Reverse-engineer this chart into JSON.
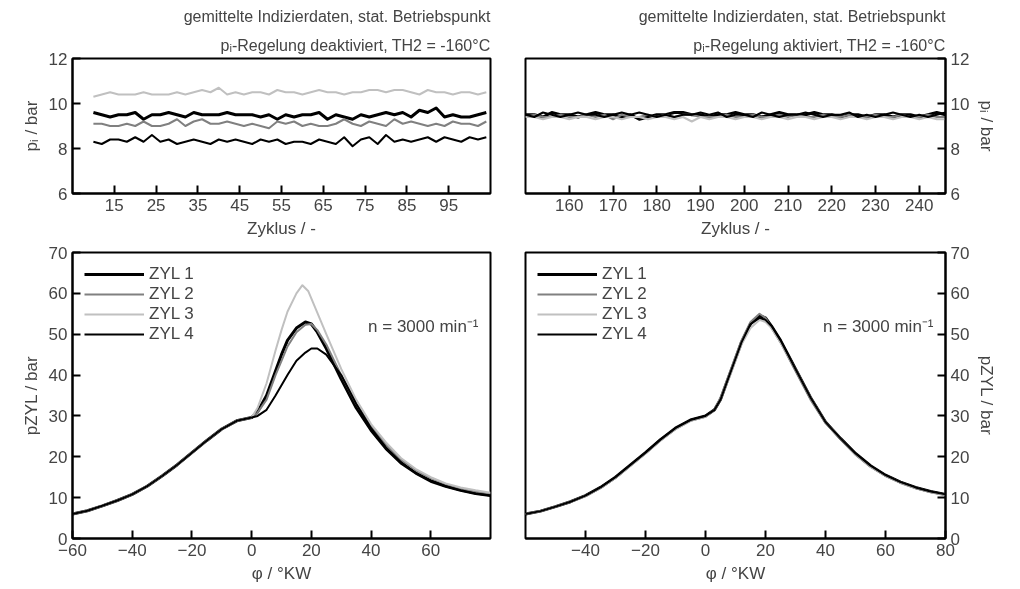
{
  "chart_data": [
    {
      "type": "line",
      "title": "gemittelte Indizierdaten, stat. Betriebspunkt",
      "subtitle": "pᵢ-Regelung deaktiviert, TH2 = -160°C",
      "xlabel": "Zyklus / -",
      "ylabel": "pᵢ / bar",
      "xlim": [
        5,
        105
      ],
      "xticks": [
        15,
        25,
        35,
        45,
        55,
        65,
        75,
        85,
        95
      ],
      "ylim": [
        6,
        12
      ],
      "yticks": [
        6,
        8,
        10,
        12
      ],
      "grid": false,
      "legend": false,
      "x": [
        10,
        12,
        14,
        16,
        18,
        20,
        22,
        24,
        26,
        28,
        30,
        32,
        34,
        36,
        38,
        40,
        42,
        44,
        46,
        48,
        50,
        52,
        54,
        56,
        58,
        60,
        62,
        64,
        66,
        68,
        70,
        72,
        74,
        76,
        78,
        80,
        82,
        84,
        86,
        88,
        90,
        92,
        94,
        96,
        98,
        100,
        102,
        104
      ],
      "series": [
        {
          "color": "#000000",
          "values": [
            9.6,
            9.5,
            9.4,
            9.5,
            9.5,
            9.6,
            9.3,
            9.5,
            9.5,
            9.6,
            9.5,
            9.4,
            9.6,
            9.5,
            9.5,
            9.5,
            9.6,
            9.5,
            9.5,
            9.5,
            9.4,
            9.5,
            9.3,
            9.5,
            9.4,
            9.5,
            9.5,
            9.6,
            9.3,
            9.5,
            9.4,
            9.3,
            9.5,
            9.4,
            9.5,
            9.6,
            9.5,
            9.6,
            9.4,
            9.7,
            9.6,
            9.8,
            9.4,
            9.5,
            9.4,
            9.4,
            9.5,
            9.6
          ]
        },
        {
          "color": "#808080",
          "values": [
            9.1,
            9.1,
            9.0,
            9.0,
            9.1,
            9.0,
            9.2,
            9.0,
            9.0,
            9.1,
            9.3,
            9.0,
            9.2,
            9.3,
            9.1,
            9.1,
            9.2,
            9.1,
            9.0,
            9.1,
            9.0,
            8.9,
            9.2,
            9.1,
            9.2,
            9.0,
            9.1,
            9.0,
            9.0,
            9.1,
            9.3,
            9.1,
            9.0,
            9.2,
            9.1,
            9.0,
            9.3,
            9.1,
            9.2,
            9.1,
            9.0,
            9.1,
            9.0,
            9.2,
            9.1,
            9.1,
            9.0,
            9.2
          ]
        },
        {
          "color": "#c0c0c0",
          "values": [
            10.3,
            10.4,
            10.5,
            10.4,
            10.4,
            10.4,
            10.5,
            10.4,
            10.4,
            10.4,
            10.5,
            10.4,
            10.5,
            10.6,
            10.5,
            10.7,
            10.4,
            10.5,
            10.4,
            10.5,
            10.5,
            10.4,
            10.6,
            10.5,
            10.5,
            10.4,
            10.5,
            10.6,
            10.5,
            10.5,
            10.4,
            10.5,
            10.5,
            10.6,
            10.6,
            10.5,
            10.6,
            10.6,
            10.5,
            10.4,
            10.6,
            10.5,
            10.5,
            10.4,
            10.5,
            10.5,
            10.4,
            10.5
          ]
        },
        {
          "color": "#000000",
          "values": [
            8.3,
            8.2,
            8.4,
            8.4,
            8.3,
            8.5,
            8.3,
            8.6,
            8.3,
            8.4,
            8.2,
            8.3,
            8.4,
            8.3,
            8.2,
            8.4,
            8.3,
            8.4,
            8.3,
            8.2,
            8.4,
            8.3,
            8.4,
            8.2,
            8.3,
            8.3,
            8.2,
            8.4,
            8.3,
            8.2,
            8.5,
            8.1,
            8.4,
            8.5,
            8.2,
            8.6,
            8.3,
            8.4,
            8.3,
            8.4,
            8.5,
            8.3,
            8.5,
            8.4,
            8.3,
            8.5,
            8.4,
            8.5
          ]
        }
      ]
    },
    {
      "type": "line",
      "title": "gemittelte Indizierdaten, stat. Betriebspunkt",
      "subtitle": "pᵢ-Regelung aktiviert, TH2 = -160°C",
      "xlabel": "Zyklus / -",
      "y2label": "pᵢ / bar",
      "xlim": [
        150,
        246
      ],
      "xticks": [
        160,
        170,
        180,
        190,
        200,
        210,
        220,
        230,
        240
      ],
      "y2lim": [
        6,
        12
      ],
      "y2ticks": [
        6,
        8,
        10,
        12
      ],
      "grid": false,
      "legend": false,
      "x": [
        150,
        152,
        154,
        156,
        158,
        160,
        162,
        164,
        166,
        168,
        170,
        172,
        174,
        176,
        178,
        180,
        182,
        184,
        186,
        188,
        190,
        192,
        194,
        196,
        198,
        200,
        202,
        204,
        206,
        208,
        210,
        212,
        214,
        216,
        218,
        220,
        222,
        224,
        226,
        228,
        230,
        232,
        234,
        236,
        238,
        240,
        242,
        244,
        246
      ],
      "series": [
        {
          "color": "#000000",
          "axis": "y2",
          "values": [
            9.5,
            9.5,
            9.4,
            9.6,
            9.5,
            9.5,
            9.4,
            9.5,
            9.6,
            9.5,
            9.5,
            9.4,
            9.5,
            9.3,
            9.4,
            9.5,
            9.5,
            9.6,
            9.6,
            9.5,
            9.5,
            9.4,
            9.5,
            9.5,
            9.6,
            9.5,
            9.5,
            9.4,
            9.5,
            9.6,
            9.5,
            9.5,
            9.5,
            9.6,
            9.5,
            9.5,
            9.4,
            9.5,
            9.5,
            9.4,
            9.5,
            9.5,
            9.4,
            9.5,
            9.5,
            9.4,
            9.5,
            9.6,
            9.5
          ]
        },
        {
          "color": "#808080",
          "axis": "y2",
          "values": [
            9.4,
            9.5,
            9.4,
            9.4,
            9.5,
            9.4,
            9.4,
            9.5,
            9.4,
            9.5,
            9.3,
            9.5,
            9.4,
            9.4,
            9.5,
            9.4,
            9.5,
            9.4,
            9.5,
            9.5,
            9.4,
            9.4,
            9.4,
            9.5,
            9.4,
            9.4,
            9.5,
            9.4,
            9.4,
            9.5,
            9.4,
            9.5,
            9.4,
            9.4,
            9.5,
            9.4,
            9.4,
            9.5,
            9.4,
            9.4,
            9.5,
            9.4,
            9.4,
            9.5,
            9.4,
            9.4,
            9.5,
            9.4,
            9.4
          ]
        },
        {
          "color": "#c0c0c0",
          "axis": "y2",
          "values": [
            9.4,
            9.4,
            9.3,
            9.4,
            9.4,
            9.3,
            9.4,
            9.4,
            9.3,
            9.4,
            9.4,
            9.3,
            9.4,
            9.4,
            9.3,
            9.4,
            9.4,
            9.3,
            9.4,
            9.2,
            9.4,
            9.3,
            9.4,
            9.4,
            9.3,
            9.4,
            9.4,
            9.3,
            9.4,
            9.4,
            9.3,
            9.4,
            9.4,
            9.3,
            9.4,
            9.4,
            9.3,
            9.4,
            9.4,
            9.3,
            9.4,
            9.4,
            9.3,
            9.4,
            9.4,
            9.3,
            9.4,
            9.3,
            9.3
          ]
        },
        {
          "color": "#000000",
          "axis": "y2",
          "values": [
            9.5,
            9.4,
            9.6,
            9.5,
            9.4,
            9.5,
            9.6,
            9.5,
            9.5,
            9.4,
            9.5,
            9.6,
            9.5,
            9.6,
            9.5,
            9.4,
            9.5,
            9.4,
            9.5,
            9.5,
            9.6,
            9.5,
            9.6,
            9.4,
            9.5,
            9.5,
            9.4,
            9.6,
            9.5,
            9.4,
            9.5,
            9.5,
            9.6,
            9.5,
            9.4,
            9.5,
            9.5,
            9.6,
            9.4,
            9.5,
            9.4,
            9.5,
            9.6,
            9.5,
            9.4,
            9.5,
            9.4,
            9.5,
            9.6
          ]
        }
      ]
    },
    {
      "type": "line",
      "xlabel": "φ / °KW",
      "ylabel": "pZYL / bar",
      "xlim": [
        -60,
        80
      ],
      "xticks": [
        -60,
        -40,
        -20,
        0,
        20,
        40,
        60
      ],
      "ylim": [
        0,
        70
      ],
      "yticks": [
        0,
        10,
        20,
        30,
        40,
        50,
        60,
        70
      ],
      "grid": false,
      "legend": "top left",
      "annotations": [
        "n = 3000 min⁻¹"
      ],
      "series": [
        {
          "name": "ZYL 1",
          "color": "#000000",
          "x": [
            -60,
            -55,
            -50,
            -45,
            -40,
            -35,
            -30,
            -25,
            -20,
            -15,
            -10,
            -5,
            0,
            2,
            5,
            8,
            10,
            12,
            15,
            18,
            20,
            22,
            25,
            30,
            35,
            40,
            45,
            50,
            55,
            60,
            65,
            70,
            75,
            80
          ],
          "values": [
            6,
            6.8,
            8,
            9.3,
            10.8,
            12.8,
            15.3,
            18,
            21,
            24,
            26.8,
            28.8,
            29.6,
            31,
            35,
            41,
            45,
            48.5,
            51.5,
            53,
            52.5,
            50.5,
            46.5,
            39,
            32,
            26.5,
            22,
            18.5,
            16,
            14,
            12.8,
            11.8,
            11,
            10.5
          ]
        },
        {
          "name": "ZYL 2",
          "color": "#808080",
          "x": [
            -60,
            -55,
            -50,
            -45,
            -40,
            -35,
            -30,
            -25,
            -20,
            -15,
            -10,
            -5,
            0,
            2,
            5,
            8,
            10,
            12,
            15,
            18,
            20,
            22,
            25,
            30,
            35,
            40,
            45,
            50,
            55,
            60,
            65,
            70,
            75,
            80
          ],
          "values": [
            6,
            6.8,
            8,
            9.3,
            10.8,
            12.8,
            15.3,
            18,
            21,
            24,
            26.8,
            28.8,
            29.6,
            30.8,
            34,
            40,
            43.5,
            47,
            50.5,
            52.3,
            52.5,
            51,
            47.5,
            40,
            33,
            27.5,
            23,
            19.3,
            16.7,
            14.8,
            13.3,
            12.2,
            11.5,
            11
          ]
        },
        {
          "name": "ZYL 3",
          "color": "#c0c0c0",
          "x": [
            -60,
            -55,
            -50,
            -45,
            -40,
            -35,
            -30,
            -25,
            -20,
            -15,
            -10,
            -5,
            0,
            2,
            5,
            8,
            10,
            12,
            15,
            17,
            19,
            21,
            25,
            30,
            35,
            40,
            45,
            50,
            55,
            60,
            65,
            70,
            75,
            80
          ],
          "values": [
            6,
            6.8,
            8,
            9.3,
            10.8,
            12.8,
            15.3,
            18,
            21,
            24,
            26.8,
            28.8,
            29.6,
            32,
            38,
            46,
            51,
            55.5,
            60,
            62,
            60.5,
            57,
            50,
            41.5,
            34,
            28,
            23.5,
            19.7,
            17,
            15,
            13.5,
            12.5,
            11.8,
            11.2
          ]
        },
        {
          "name": "ZYL 4",
          "color": "#000000",
          "x": [
            -60,
            -55,
            -50,
            -45,
            -40,
            -35,
            -30,
            -25,
            -20,
            -15,
            -10,
            -5,
            0,
            2,
            5,
            8,
            10,
            12,
            15,
            18,
            20,
            22,
            25,
            30,
            35,
            40,
            45,
            50,
            55,
            60,
            65,
            70,
            75,
            80
          ],
          "values": [
            6,
            6.8,
            8,
            9.3,
            10.8,
            12.8,
            15.3,
            18,
            21,
            24,
            26.8,
            28.8,
            29.6,
            30,
            31.5,
            35,
            37.5,
            40,
            43.5,
            45.5,
            46.5,
            46.5,
            45,
            40,
            33,
            27,
            22.3,
            18.7,
            16,
            14.2,
            12.8,
            11.8,
            11,
            10.5
          ]
        }
      ]
    },
    {
      "type": "line",
      "xlabel": "φ / °KW",
      "y2label": "pZYL / bar",
      "xlim": [
        -60,
        80
      ],
      "xticks": [
        -40,
        -20,
        0,
        20,
        40,
        60,
        80
      ],
      "y2lim": [
        0,
        70
      ],
      "y2ticks": [
        0,
        10,
        20,
        30,
        40,
        50,
        60,
        70
      ],
      "grid": false,
      "legend": "top left",
      "annotations": [
        "n = 3000 min⁻¹"
      ],
      "series": [
        {
          "name": "ZYL 1",
          "color": "#000000",
          "axis": "y2",
          "x": [
            -60,
            -55,
            -50,
            -45,
            -40,
            -35,
            -30,
            -25,
            -20,
            -15,
            -10,
            -5,
            0,
            3,
            5,
            8,
            10,
            12,
            15,
            18,
            20,
            22,
            25,
            30,
            35,
            40,
            45,
            50,
            55,
            60,
            65,
            70,
            75,
            80
          ],
          "values": [
            6,
            6.7,
            7.8,
            9,
            10.5,
            12.5,
            15,
            18,
            21,
            24.2,
            27,
            29,
            30,
            31.5,
            34,
            40,
            44,
            48,
            52.5,
            54.5,
            54,
            52,
            48.5,
            41.5,
            34.5,
            28.5,
            24.5,
            20.8,
            17.8,
            15.5,
            13.8,
            12.5,
            11.5,
            10.8
          ]
        },
        {
          "name": "ZYL 2",
          "color": "#808080",
          "axis": "y2",
          "x": [
            -60,
            -55,
            -50,
            -45,
            -40,
            -35,
            -30,
            -25,
            -20,
            -15,
            -10,
            -5,
            0,
            3,
            5,
            8,
            10,
            12,
            15,
            18,
            20,
            22,
            25,
            30,
            35,
            40,
            45,
            50,
            55,
            60,
            65,
            70,
            75,
            80
          ],
          "values": [
            6,
            6.7,
            7.8,
            9,
            10.5,
            12.4,
            14.8,
            17.8,
            20.8,
            24,
            26.8,
            28.8,
            29.8,
            31.5,
            34.5,
            40.5,
            44.5,
            48.5,
            53,
            55,
            54,
            51.5,
            48,
            41,
            34,
            28.3,
            24.3,
            20.5,
            17.5,
            15.3,
            13.6,
            12.3,
            11.3,
            10.6
          ]
        },
        {
          "name": "ZYL 3",
          "color": "#c0c0c0",
          "axis": "y2",
          "x": [
            -60,
            -55,
            -50,
            -45,
            -40,
            -35,
            -30,
            -25,
            -20,
            -15,
            -10,
            -5,
            0,
            3,
            5,
            8,
            10,
            12,
            15,
            18,
            20,
            22,
            25,
            30,
            35,
            40,
            45,
            50,
            55,
            60,
            65,
            70,
            75,
            80
          ],
          "values": [
            6,
            6.7,
            7.8,
            9,
            10.4,
            12.4,
            14.8,
            17.8,
            20.8,
            24,
            26.8,
            28.8,
            29.8,
            31.5,
            34,
            39.5,
            43.5,
            47.5,
            51.5,
            53.5,
            53,
            51.5,
            48,
            41.5,
            34.5,
            28.5,
            24.5,
            20.6,
            17.6,
            15.4,
            13.7,
            12.4,
            11.4,
            10.7
          ]
        },
        {
          "name": "ZYL 4",
          "color": "#000000",
          "axis": "y2",
          "x": [
            -60,
            -55,
            -50,
            -45,
            -40,
            -35,
            -30,
            -25,
            -20,
            -15,
            -10,
            -5,
            0,
            3,
            5,
            8,
            10,
            12,
            15,
            18,
            20,
            22,
            25,
            30,
            35,
            40,
            45,
            50,
            55,
            60,
            65,
            70,
            75,
            80
          ],
          "values": [
            6,
            6.7,
            7.8,
            9,
            10.5,
            12.5,
            15,
            18,
            21,
            24.2,
            27,
            29,
            30,
            31.5,
            34,
            40,
            44,
            48,
            52.5,
            54,
            53.5,
            52,
            48.5,
            41.5,
            34.5,
            28.5,
            24.5,
            20.8,
            17.8,
            15.5,
            13.8,
            12.5,
            11.5,
            10.8
          ]
        }
      ]
    }
  ]
}
